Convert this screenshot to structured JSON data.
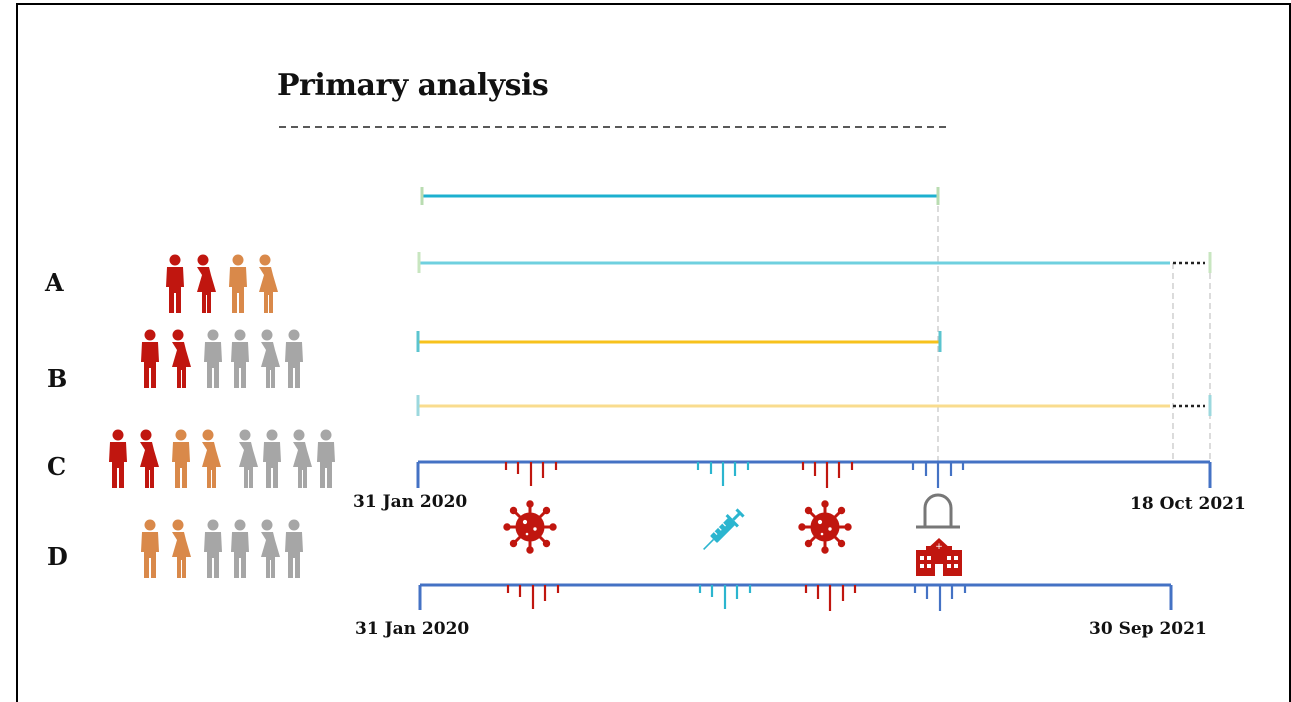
{
  "title": "Primary analysis",
  "groups": [
    {
      "label": "A"
    },
    {
      "label": "B"
    },
    {
      "label": "C"
    },
    {
      "label": "D"
    }
  ],
  "timeline_top": {
    "start": "31 Jan 2020",
    "end": "18 Oct 2021"
  },
  "timeline_bottom": {
    "start": "31 Jan 2020",
    "end": "30 Sep 2021"
  },
  "colors": {
    "line1": "#1db0cf",
    "line2": "#6fd0df",
    "line3": "#f7c21c",
    "line4": "#f9dc8e",
    "axis": "#4472c4",
    "red": "#c0160f",
    "orange": "#d9894a",
    "grey": "#a6a6a6",
    "teal": "#2bb5cf"
  },
  "icons": [
    "person-icon",
    "virus-icon",
    "syringe-icon",
    "ventilator-icon",
    "hospital-icon"
  ]
}
